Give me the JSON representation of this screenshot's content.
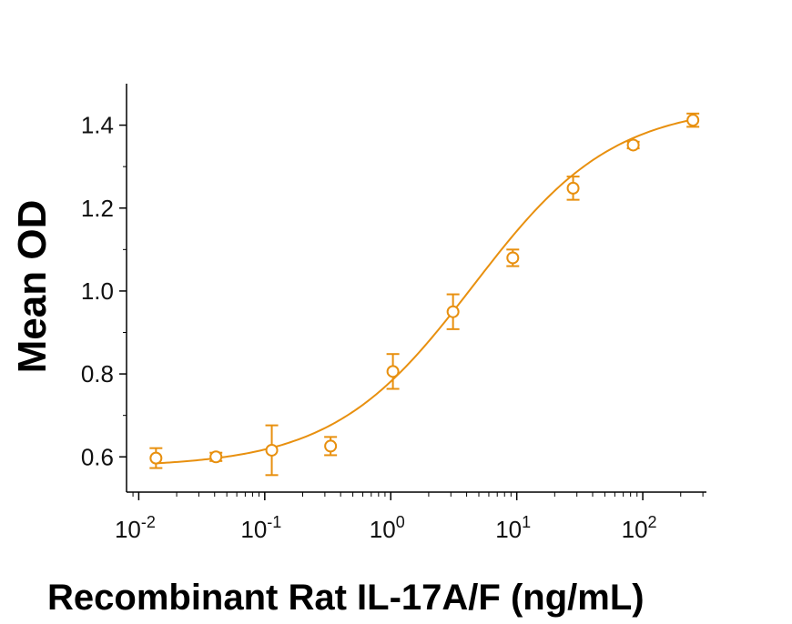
{
  "chart_data": {
    "type": "scatter",
    "xlabel": "Recombinant Rat IL-17A/F (ng/mL)",
    "ylabel": "Mean OD",
    "xscale": "log",
    "xlim": [
      0.008,
      320
    ],
    "ylim": [
      0.515,
      1.5
    ],
    "x_ticks": [
      {
        "base": "10",
        "exp": "-2"
      },
      {
        "base": "10",
        "exp": "-1"
      },
      {
        "base": "10",
        "exp": "0"
      },
      {
        "base": "10",
        "exp": "1"
      },
      {
        "base": "10",
        "exp": "2"
      }
    ],
    "y_ticks": [
      "0.6",
      "0.8",
      "1.0",
      "1.2",
      "1.4"
    ],
    "grid": false,
    "color": "#E8900F",
    "series": [
      {
        "x": [
          0.0137,
          0.041,
          0.1137,
          0.333,
          1.04,
          3.12,
          9.3,
          28.0,
          84.0,
          250.0
        ],
        "y": [
          0.597,
          0.6,
          0.616,
          0.626,
          0.806,
          0.95,
          1.08,
          1.248,
          1.352,
          1.412
        ],
        "err": [
          0.024,
          0.01,
          0.06,
          0.022,
          0.042,
          0.042,
          0.02,
          0.028,
          0.008,
          0.016
        ]
      }
    ],
    "fit": {
      "model": "4PL",
      "bottom": 0.575,
      "top": 1.45,
      "ec50": 4.5,
      "hill": 0.78
    }
  }
}
